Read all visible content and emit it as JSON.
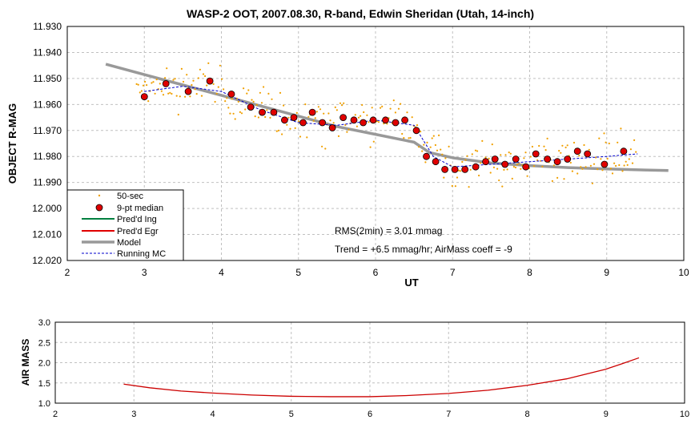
{
  "chart_data": [
    {
      "type": "scatter",
      "title": "WASP-2 OOT, 2007.08.30, R-band, Edwin Sheridan (Utah, 14-inch)",
      "xlabel": "UT",
      "ylabel": "OBJECT R-MAG",
      "xlim": [
        2,
        10
      ],
      "ylim": [
        11.93,
        12.02
      ],
      "y_inverted": true,
      "grid": true,
      "x_ticks": [
        "2",
        "3",
        "4",
        "5",
        "6",
        "7",
        "8",
        "9",
        "10"
      ],
      "y_ticks": [
        "11.930",
        "11.940",
        "11.950",
        "11.960",
        "11.970",
        "11.980",
        "11.990",
        "12.000",
        "12.010",
        "12.020"
      ],
      "legend_position": "bottom-left",
      "annotations": [
        "RMS(2min) = 3.01 mmag",
        "Trend = +6.5 mmag/hr; AirMass coeff = -9"
      ],
      "series": [
        {
          "name": "50-sec",
          "color": "#f0a000",
          "marker": "dot",
          "values": []
        },
        {
          "name": "9-pt median",
          "color": "#e00000",
          "marker": "circle",
          "x": [
            3.0,
            3.28,
            3.57,
            3.85,
            4.13,
            4.38,
            4.53,
            4.68,
            4.82,
            4.94,
            5.06,
            5.18,
            5.31,
            5.44,
            5.58,
            5.72,
            5.84,
            5.97,
            6.13,
            6.26,
            6.38,
            6.53,
            6.66,
            6.78,
            6.9,
            7.03,
            7.16,
            7.3,
            7.43,
            7.55,
            7.68,
            7.82,
            7.95,
            8.08,
            8.23,
            8.36,
            8.49,
            8.62,
            8.75,
            8.97,
            9.22
          ],
          "y": [
            11.957,
            11.952,
            11.955,
            11.951,
            11.956,
            11.961,
            11.963,
            11.963,
            11.966,
            11.965,
            11.967,
            11.963,
            11.967,
            11.969,
            11.965,
            11.966,
            11.967,
            11.966,
            11.966,
            11.967,
            11.966,
            11.97,
            11.98,
            11.982,
            11.985,
            11.985,
            11.985,
            11.984,
            11.982,
            11.981,
            11.983,
            11.981,
            11.984,
            11.979,
            11.981,
            11.982,
            11.981,
            11.978,
            11.979,
            11.983,
            11.978
          ]
        },
        {
          "name": "Pred'd Ing",
          "color": "#008040",
          "values": []
        },
        {
          "name": "Pred'd Egr",
          "color": "#e00000",
          "values": []
        },
        {
          "name": "Model",
          "color": "#999999",
          "x": [
            2.5,
            3.0,
            3.5,
            4.0,
            4.5,
            5.0,
            5.5,
            6.0,
            6.5,
            6.7,
            7.0,
            7.5,
            8.0,
            8.5,
            9.0,
            9.5,
            9.8
          ],
          "y": [
            11.9445,
            11.9485,
            11.9525,
            11.9565,
            11.9605,
            11.9645,
            11.9685,
            11.9715,
            11.9745,
            11.9785,
            11.9805,
            11.9825,
            11.9835,
            11.9843,
            11.9848,
            11.9852,
            11.9854
          ]
        },
        {
          "name": "Running MC",
          "color": "#0000cc",
          "dashed": true,
          "x": [
            3.0,
            3.5,
            4.0,
            4.5,
            5.0,
            5.5,
            6.0,
            6.5,
            6.75,
            7.0,
            7.5,
            8.0,
            8.5,
            9.0,
            9.4
          ],
          "y": [
            11.955,
            11.953,
            11.955,
            11.962,
            11.967,
            11.968,
            11.966,
            11.968,
            11.98,
            11.984,
            11.983,
            11.982,
            11.981,
            11.98,
            11.979
          ]
        }
      ]
    },
    {
      "type": "line",
      "title": "",
      "xlabel": "",
      "ylabel": "AIR MASS",
      "xlim": [
        2,
        10
      ],
      "ylim": [
        1.0,
        3.0
      ],
      "grid": true,
      "x_ticks": [
        "2",
        "3",
        "4",
        "5",
        "6",
        "7",
        "8",
        "9",
        "10"
      ],
      "y_ticks": [
        "1.0",
        "1.5",
        "2.0",
        "2.5",
        "3.0"
      ],
      "series": [
        {
          "color": "#cc0000",
          "x": [
            2.87,
            3.2,
            3.6,
            4.0,
            4.5,
            5.0,
            5.5,
            6.0,
            6.5,
            7.0,
            7.5,
            8.0,
            8.5,
            9.0,
            9.2,
            9.42
          ],
          "y": [
            1.47,
            1.38,
            1.3,
            1.25,
            1.2,
            1.17,
            1.16,
            1.16,
            1.19,
            1.24,
            1.32,
            1.44,
            1.6,
            1.84,
            1.97,
            2.12
          ]
        }
      ]
    }
  ]
}
